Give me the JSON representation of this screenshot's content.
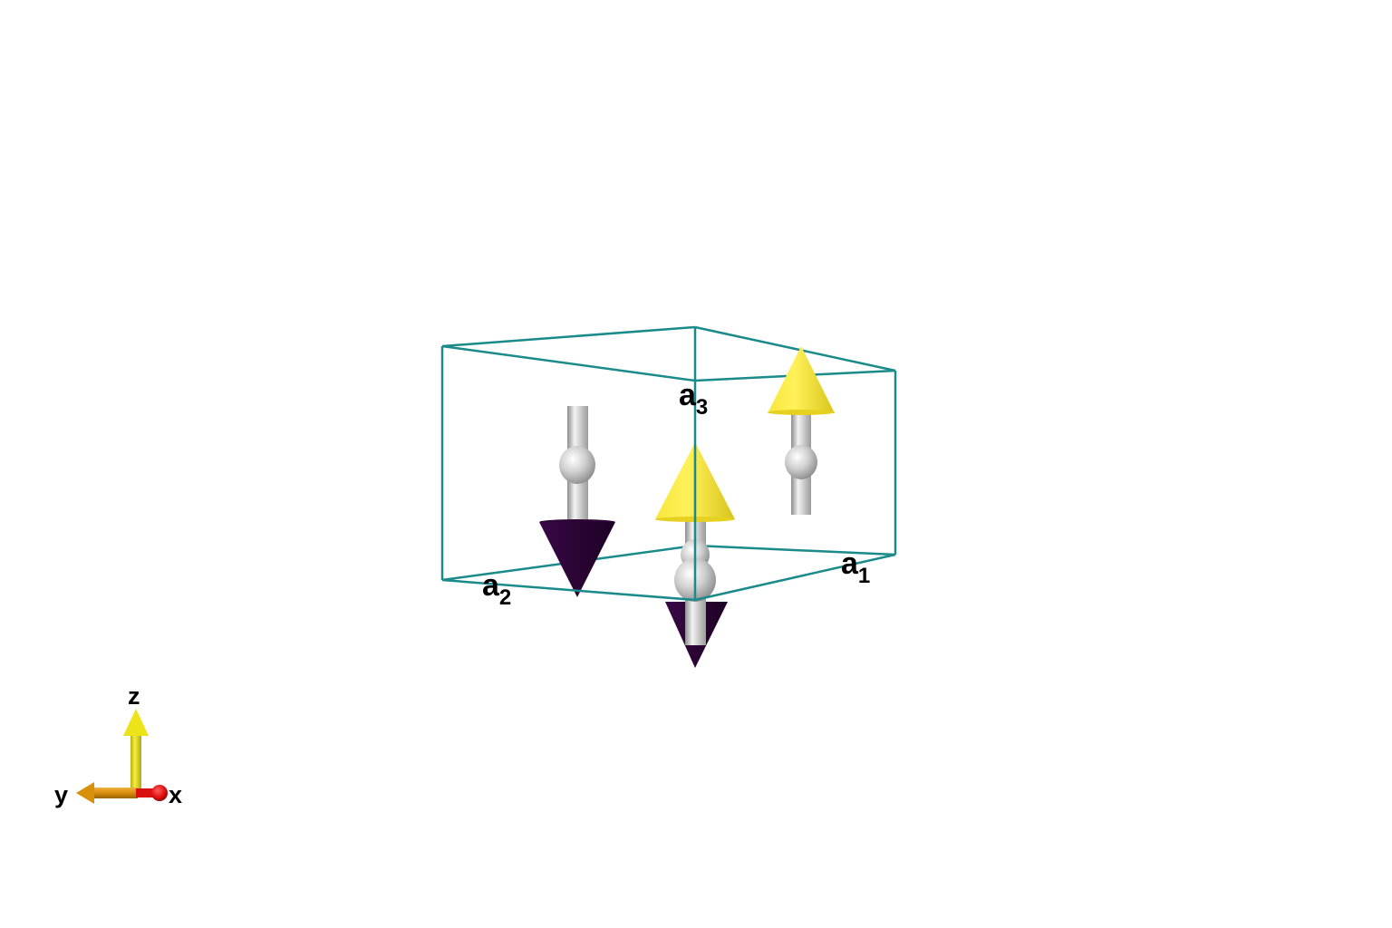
{
  "cell_labels": {
    "a1": {
      "main": "a",
      "sub": "1"
    },
    "a2": {
      "main": "a",
      "sub": "2"
    },
    "a3": {
      "main": "a",
      "sub": "3"
    }
  },
  "axes_labels": {
    "x": "x",
    "y": "y",
    "z": "z"
  },
  "spins": [
    {
      "id": "left",
      "direction": "down"
    },
    {
      "id": "center-upper",
      "direction": "up"
    },
    {
      "id": "center-lower",
      "direction": "down"
    },
    {
      "id": "right",
      "direction": "up"
    }
  ],
  "colors": {
    "cell_edge": "#1a8a8a",
    "spin_up": "#f2dc2a",
    "spin_down": "#33063f",
    "atom": "#c8c8c8",
    "axis_x": "#e01010",
    "axis_y": "#d8900a",
    "axis_z": "#e6e01a"
  }
}
